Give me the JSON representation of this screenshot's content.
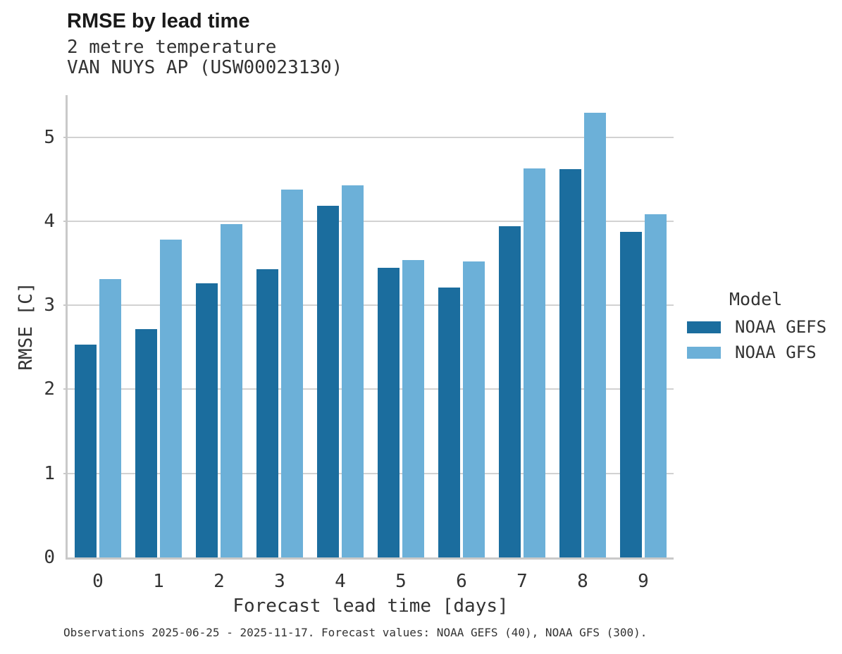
{
  "header": {
    "title": "RMSE by lead time",
    "subtitle_line1": "2 metre temperature",
    "subtitle_line2": "VAN NUYS AP (USW00023130)"
  },
  "chart_data": {
    "type": "bar",
    "title": "RMSE by lead time",
    "subtitle": [
      "2 metre temperature",
      "VAN NUYS AP (USW00023130)"
    ],
    "categories": [
      "0",
      "1",
      "2",
      "3",
      "4",
      "5",
      "6",
      "7",
      "8",
      "9"
    ],
    "series": [
      {
        "name": "NOAA GEFS",
        "color": "#1b6d9e",
        "values": [
          2.53,
          2.72,
          3.26,
          3.43,
          4.18,
          3.45,
          3.21,
          3.94,
          4.62,
          3.87
        ]
      },
      {
        "name": "NOAA GFS",
        "color": "#6cb0d8",
        "values": [
          3.31,
          3.78,
          3.97,
          4.38,
          4.43,
          3.54,
          3.52,
          4.63,
          5.29,
          4.08
        ]
      }
    ],
    "xlabel": "Forecast lead time [days]",
    "ylabel": "RMSE [C]",
    "ylim": [
      0,
      5.5
    ],
    "yticks": [
      "0",
      "1",
      "2",
      "3",
      "4",
      "5"
    ],
    "grid": "horizontal",
    "legend_title": "Model",
    "legend_position": "right-center"
  },
  "footer": {
    "note": "Observations 2025-06-25 - 2025-11-17. Forecast values: NOAA GEFS (40), NOAA GFS (300)."
  },
  "colors": {
    "gefs_bar": "#1b6d9e",
    "gfs_bar": "#6cb0d8",
    "gridline": "#d2d2d2",
    "spine": "#c9c9c9",
    "title_text": "#1a1a1a",
    "body_text": "#333333"
  }
}
